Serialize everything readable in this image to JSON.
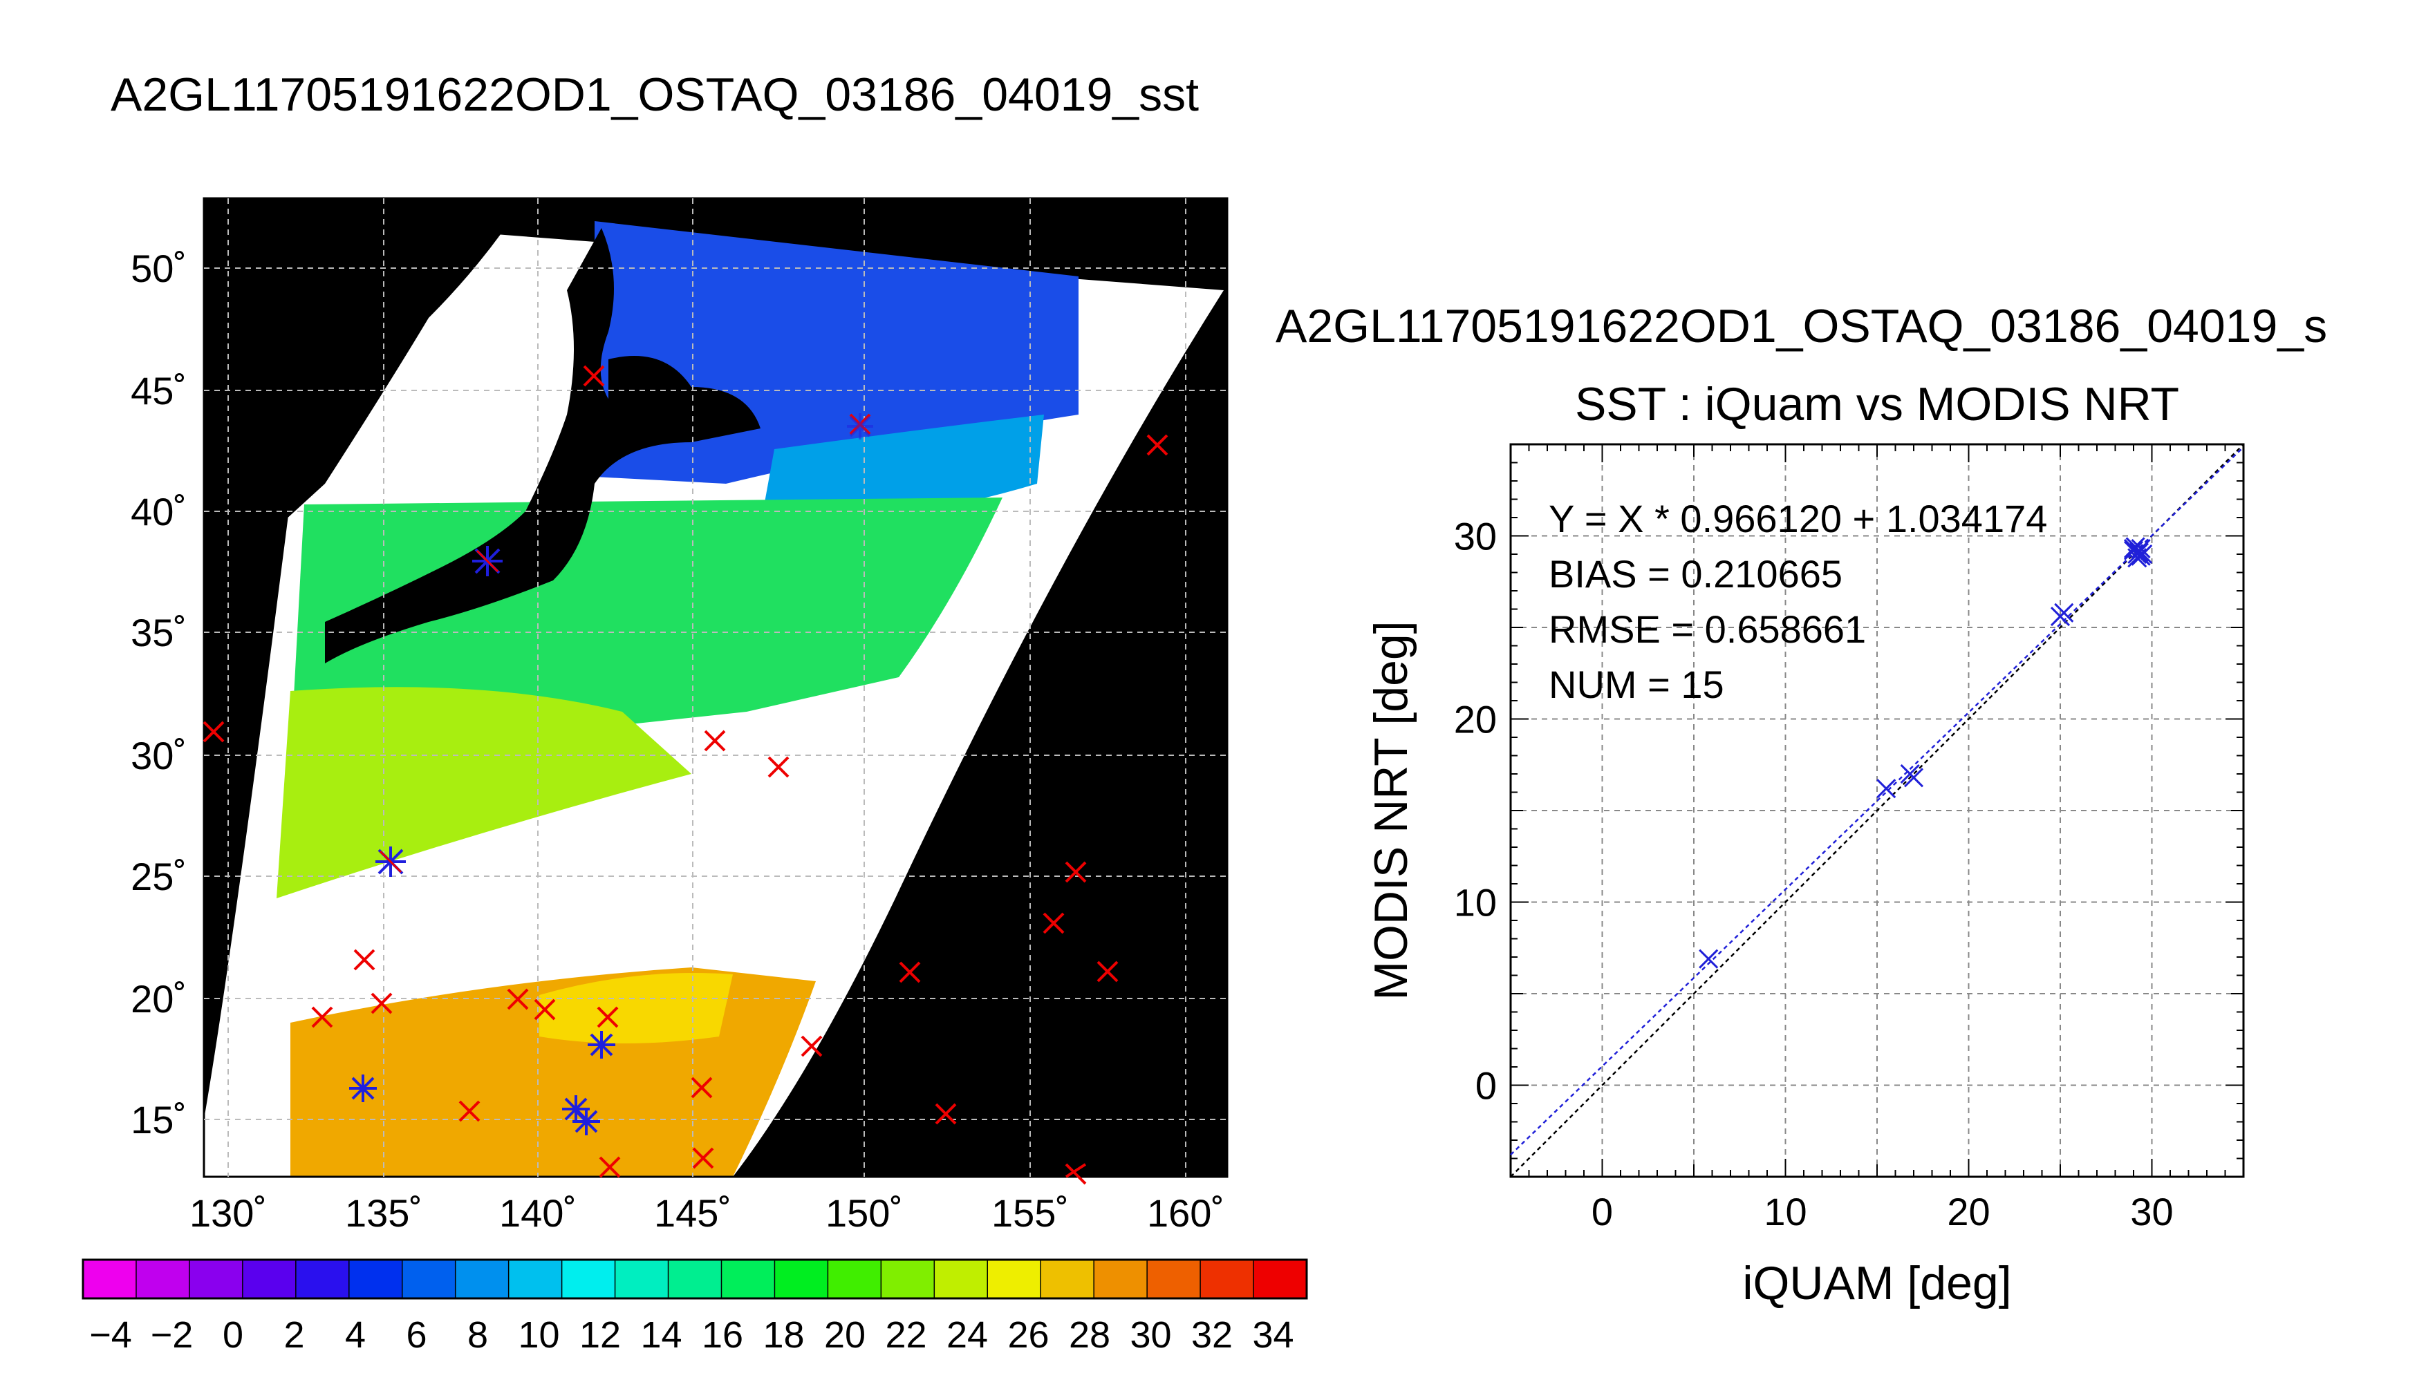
{
  "page_title": "A2GL11705191622OD1_OSTAQ_03186_04019_sst",
  "map": {
    "lon_ticks": [
      "130˚",
      "135˚",
      "140˚",
      "145˚",
      "150˚",
      "155˚",
      "160˚"
    ],
    "lat_ticks": [
      "15˚",
      "20˚",
      "25˚",
      "30˚",
      "35˚",
      "40˚",
      "45˚",
      "50˚"
    ],
    "match_marker_color": "#1f1fdd",
    "buoy_marker_color": "#ee0000"
  },
  "colorbar": {
    "tick_labels": [
      "−4",
      "−2",
      "0",
      "2",
      "4",
      "6",
      "8",
      "10",
      "12",
      "14",
      "16",
      "18",
      "20",
      "22",
      "24",
      "26",
      "28",
      "30",
      "32",
      "34"
    ],
    "colors": [
      "#ee00ee",
      "#c000ee",
      "#8a00ee",
      "#5a00ee",
      "#2a10ee",
      "#0030ee",
      "#0060ee",
      "#0090ee",
      "#00c0ee",
      "#00eeee",
      "#00eec0",
      "#00ee90",
      "#00ee5a",
      "#00ee20",
      "#40ee00",
      "#80ee00",
      "#c0ee00",
      "#eeee00",
      "#eec000",
      "#ee9000",
      "#ee6000",
      "#ee3000",
      "#ee0000"
    ]
  },
  "scatter_header": "A2GL11705191622OD1_OSTAQ_03186_04019_s",
  "chart_data": {
    "type": "scatter",
    "title": "SST : iQuam vs MODIS NRT",
    "xlabel": "iQUAM [deg]",
    "ylabel": "MODIS NRT [deg]",
    "xlim": [
      -5,
      35
    ],
    "ylim": [
      -5,
      35
    ],
    "x_ticks": [
      "0",
      "10",
      "20",
      "30"
    ],
    "y_ticks": [
      "0",
      "10",
      "20",
      "30"
    ],
    "grid": true,
    "stats": {
      "equation": "Y = X * 0.966120 + 1.034174",
      "bias": "BIAS = 0.210665",
      "rmse": "RMSE = 0.658661",
      "num": "NUM = 15"
    },
    "fit": {
      "slope": 0.96612,
      "intercept": 1.034174
    },
    "points": [
      {
        "x": 5.8,
        "y": 6.9
      },
      {
        "x": 15.5,
        "y": 16.2
      },
      {
        "x": 16.8,
        "y": 17.0
      },
      {
        "x": 17.0,
        "y": 16.8
      },
      {
        "x": 25.0,
        "y": 25.6
      },
      {
        "x": 25.2,
        "y": 25.8
      },
      {
        "x": 29.0,
        "y": 29.3
      },
      {
        "x": 29.2,
        "y": 29.0
      },
      {
        "x": 29.4,
        "y": 28.9
      },
      {
        "x": 29.1,
        "y": 29.4
      },
      {
        "x": 29.3,
        "y": 29.1
      },
      {
        "x": 29.5,
        "y": 29.0
      },
      {
        "x": 29.0,
        "y": 29.2
      },
      {
        "x": 29.2,
        "y": 28.8
      },
      {
        "x": 29.4,
        "y": 29.3
      }
    ],
    "marker_color": "#2020d8",
    "fit_line_color": "#2020d8",
    "identity_line_color": "#000000"
  }
}
